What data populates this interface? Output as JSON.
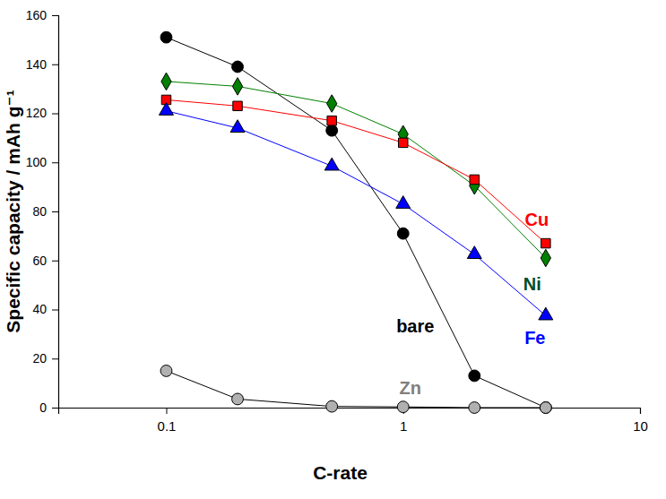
{
  "chart_data": {
    "type": "line",
    "x_label": "C-rate",
    "y_label": "Specific capacity / mAh g⁻¹",
    "log": "x",
    "grid": false,
    "x": [
      0.1,
      0.2,
      0.5,
      1,
      2,
      4
    ],
    "xlim": [
      0.035,
      10
    ],
    "xticks": [
      0.1,
      1,
      10
    ],
    "ylim": [
      0,
      160
    ],
    "yticks": [
      0,
      20,
      40,
      60,
      80,
      100,
      120,
      140,
      160
    ],
    "series": [
      {
        "name": "bare",
        "color": "#000000",
        "marker": "circle",
        "values": [
          151,
          139,
          113,
          71,
          13,
          0
        ]
      },
      {
        "name": "Ni",
        "color": "#008000",
        "marker": "diamond",
        "values": [
          133,
          131,
          124,
          111.5,
          90.5,
          61
        ]
      },
      {
        "name": "Cu",
        "color": "#ff0000",
        "marker": "square",
        "values": [
          125.5,
          123,
          117,
          108,
          93,
          67
        ]
      },
      {
        "name": "Fe",
        "color": "#0000ff",
        "marker": "triangle",
        "values": [
          121,
          114,
          98.5,
          83,
          62.5,
          37.5
        ]
      },
      {
        "name": "Zn",
        "color": "#b0b0b0",
        "marker": "circle",
        "values": [
          15,
          3.5,
          0.5,
          0.3,
          0,
          0
        ]
      }
    ]
  }
}
